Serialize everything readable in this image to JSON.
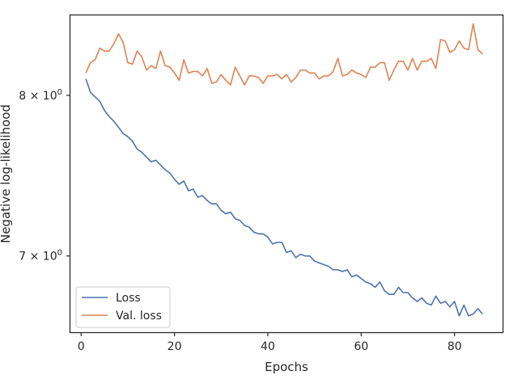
{
  "chart_data": {
    "type": "line",
    "title": "",
    "xlabel": "Epochs",
    "ylabel": "Negative log-likelihood",
    "yscale": "log",
    "xlim": [
      -2.3,
      90.3
    ],
    "ylim": [
      6.57,
      8.55
    ],
    "xticks": [
      0,
      20,
      40,
      60,
      80
    ],
    "xtick_labels": [
      "0",
      "20",
      "40",
      "60",
      "80"
    ],
    "yticks": [
      7,
      8
    ],
    "ytick_labels": [
      {
        "base": "7",
        "sym": "×",
        "pow_base": "10",
        "exp": "0"
      },
      {
        "base": "8",
        "sym": "×",
        "pow_base": "10",
        "exp": "0"
      }
    ],
    "grid": false,
    "legend_position": "lower-left",
    "series": [
      {
        "name": "Loss",
        "color": "#4c72b0",
        "x": [
          1,
          2,
          3,
          4,
          5,
          6,
          7,
          8,
          9,
          10,
          11,
          12,
          13,
          14,
          15,
          16,
          17,
          18,
          19,
          20,
          21,
          22,
          23,
          24,
          25,
          26,
          27,
          28,
          29,
          30,
          31,
          32,
          33,
          34,
          35,
          36,
          37,
          38,
          39,
          40,
          41,
          42,
          43,
          44,
          45,
          46,
          47,
          48,
          49,
          50,
          51,
          52,
          53,
          54,
          55,
          56,
          57,
          58,
          59,
          60,
          61,
          62,
          63,
          64,
          65,
          66,
          67,
          68,
          69,
          70,
          71,
          72,
          73,
          74,
          75,
          76,
          77,
          78,
          79,
          80,
          81,
          82,
          83,
          84,
          85,
          86
        ],
        "values": [
          8.11,
          8.02,
          7.99,
          7.96,
          7.9,
          7.86,
          7.83,
          7.79,
          7.75,
          7.73,
          7.7,
          7.65,
          7.63,
          7.6,
          7.57,
          7.58,
          7.55,
          7.52,
          7.5,
          7.46,
          7.43,
          7.45,
          7.39,
          7.4,
          7.35,
          7.36,
          7.33,
          7.31,
          7.31,
          7.27,
          7.25,
          7.26,
          7.22,
          7.21,
          7.18,
          7.17,
          7.14,
          7.13,
          7.13,
          7.11,
          7.07,
          7.08,
          7.08,
          7.02,
          7.03,
          6.99,
          7.01,
          7.0,
          7.0,
          6.97,
          6.96,
          6.95,
          6.94,
          6.92,
          6.92,
          6.91,
          6.92,
          6.88,
          6.89,
          6.87,
          6.85,
          6.84,
          6.82,
          6.85,
          6.8,
          6.78,
          6.78,
          6.82,
          6.79,
          6.79,
          6.76,
          6.74,
          6.76,
          6.73,
          6.72,
          6.77,
          6.73,
          6.74,
          6.71,
          6.74,
          6.66,
          6.72,
          6.66,
          6.67,
          6.7,
          6.67
        ]
      },
      {
        "name": "Val. loss",
        "color": "#dd8452",
        "x": [
          1,
          2,
          3,
          4,
          5,
          6,
          7,
          8,
          9,
          10,
          11,
          12,
          13,
          14,
          15,
          16,
          17,
          18,
          19,
          20,
          21,
          22,
          23,
          24,
          25,
          26,
          27,
          28,
          29,
          30,
          31,
          32,
          33,
          34,
          35,
          36,
          37,
          38,
          39,
          40,
          41,
          42,
          43,
          44,
          45,
          46,
          47,
          48,
          49,
          50,
          51,
          52,
          53,
          54,
          55,
          56,
          57,
          58,
          59,
          60,
          61,
          62,
          63,
          64,
          65,
          66,
          67,
          68,
          69,
          70,
          71,
          72,
          73,
          74,
          75,
          76,
          77,
          78,
          79,
          80,
          81,
          82,
          83,
          84,
          85,
          86
        ],
        "values": [
          8.15,
          8.22,
          8.24,
          8.32,
          8.3,
          8.3,
          8.35,
          8.42,
          8.36,
          8.22,
          8.21,
          8.3,
          8.26,
          8.17,
          8.2,
          8.18,
          8.3,
          8.2,
          8.19,
          8.15,
          8.1,
          8.24,
          8.15,
          8.16,
          8.16,
          8.13,
          8.18,
          8.08,
          8.09,
          8.14,
          8.1,
          8.07,
          8.19,
          8.13,
          8.07,
          8.13,
          8.13,
          8.12,
          8.08,
          8.13,
          8.13,
          8.14,
          8.11,
          8.14,
          8.09,
          8.12,
          8.17,
          8.17,
          8.15,
          8.15,
          8.11,
          8.13,
          8.13,
          8.16,
          8.25,
          8.13,
          8.14,
          8.17,
          8.15,
          8.14,
          8.12,
          8.19,
          8.19,
          8.22,
          8.22,
          8.1,
          8.17,
          8.23,
          8.23,
          8.17,
          8.25,
          8.17,
          8.23,
          8.23,
          8.25,
          8.18,
          8.38,
          8.37,
          8.29,
          8.31,
          8.37,
          8.32,
          8.31,
          8.49,
          8.31,
          8.28
        ]
      }
    ]
  }
}
